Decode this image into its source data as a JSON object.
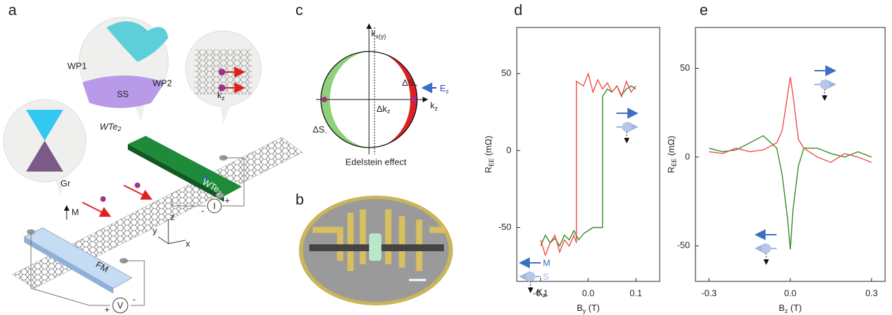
{
  "panel_labels": [
    "a",
    "b",
    "c",
    "d",
    "e"
  ],
  "panel_a": {
    "wp1": "WP1",
    "wp2": "WP2",
    "ss": "SS",
    "wte2_bubble": {
      "main": "WTe",
      "sub": "2"
    },
    "gr": "Gr",
    "m": "M",
    "fm": "FM",
    "wte2_bar": {
      "main": "WTe",
      "sub": "2"
    },
    "kz": {
      "main": "k",
      "sub": "z"
    },
    "axes": [
      "z",
      "y",
      "x"
    ],
    "voltmeter": "V",
    "current": "I",
    "signs": [
      "+",
      "-",
      "-",
      "+"
    ]
  },
  "panel_c": {
    "kxy": {
      "main": "k",
      "sub": "x(y)"
    },
    "ds_plus": {
      "main": "ΔS",
      "sub": "+"
    },
    "ez": {
      "main": "E",
      "sub": "z"
    },
    "kz": {
      "main": "k",
      "sub": "z"
    },
    "dkz": {
      "main": "Δk",
      "sub": "z"
    },
    "ds_minus": {
      "main": "ΔS",
      "sub": "-"
    },
    "caption": "Edelstein effect"
  },
  "chart_data": [
    {
      "type": "line",
      "ylabel": {
        "main": "R",
        "sub": "EE",
        "unit": " (mΩ)"
      },
      "xlabel": {
        "main": "B",
        "sub": "y",
        "unit": " (T)"
      },
      "xlim": [
        -0.15,
        0.15
      ],
      "ylim": [
        -85,
        80
      ],
      "xticks": [
        -0.1,
        {
          "value": 0,
          "label": "0.0"
        },
        0.1
      ],
      "yticks": [
        -50,
        0,
        50
      ],
      "annotations": {
        "m": "M",
        "s": "S",
        "k": {
          "main": "K",
          "sub": "z"
        }
      },
      "series": [
        {
          "color": "#2e8b1e",
          "x": [
            -0.1,
            -0.09,
            -0.08,
            -0.07,
            -0.06,
            -0.05,
            -0.04,
            -0.03,
            -0.02,
            -0.01,
            0.0,
            0.01,
            0.02,
            0.03,
            0.03,
            0.04,
            0.05,
            0.06,
            0.07,
            0.08,
            0.09,
            0.1
          ],
          "values": [
            -62,
            -55,
            -60,
            -57,
            -62,
            -55,
            -58,
            -52,
            -58,
            -54,
            -52,
            -50,
            -50,
            -50,
            35,
            40,
            38,
            42,
            36,
            40,
            42,
            40
          ]
        },
        {
          "color": "#f04a4a",
          "x": [
            0.1,
            0.09,
            0.08,
            0.07,
            0.06,
            0.05,
            0.04,
            0.03,
            0.02,
            0.01,
            0.0,
            -0.01,
            -0.02,
            -0.025,
            -0.025,
            -0.03,
            -0.04,
            -0.05,
            -0.06,
            -0.07,
            -0.08,
            -0.09,
            -0.1
          ],
          "values": [
            42,
            38,
            45,
            35,
            42,
            38,
            44,
            40,
            46,
            38,
            50,
            42,
            44,
            45,
            -60,
            -55,
            -62,
            -58,
            -66,
            -55,
            -60,
            -68,
            -58
          ]
        }
      ]
    },
    {
      "type": "line",
      "ylabel": {
        "main": "R",
        "sub": "EE",
        "unit": " (mΩ)"
      },
      "xlabel": {
        "main": "B",
        "sub": "z",
        "unit": " (T)"
      },
      "xlim": [
        -0.35,
        0.35
      ],
      "ylim": [
        -70,
        73
      ],
      "xticks": [
        -0.3,
        {
          "value": 0,
          "label": "0.0"
        },
        0.3
      ],
      "yticks": [
        -50,
        0,
        50
      ],
      "series": [
        {
          "color": "#2e8b1e",
          "x": [
            -0.3,
            -0.25,
            -0.2,
            -0.15,
            -0.1,
            -0.05,
            -0.03,
            -0.01,
            0,
            0.01,
            0.03,
            0.05,
            0.1,
            0.15,
            0.2,
            0.25,
            0.3
          ],
          "values": [
            5,
            3,
            4,
            8,
            12,
            5,
            -10,
            -35,
            -52,
            -30,
            -5,
            5,
            5,
            2,
            0,
            3,
            0
          ]
        },
        {
          "color": "#f04a4a",
          "x": [
            -0.3,
            -0.25,
            -0.2,
            -0.15,
            -0.1,
            -0.05,
            -0.03,
            -0.01,
            0,
            0.01,
            0.03,
            0.05,
            0.1,
            0.15,
            0.2,
            0.25,
            0.3
          ],
          "values": [
            3,
            2,
            5,
            3,
            4,
            8,
            15,
            35,
            45,
            35,
            10,
            5,
            0,
            -3,
            2,
            0,
            -3
          ]
        }
      ]
    }
  ]
}
